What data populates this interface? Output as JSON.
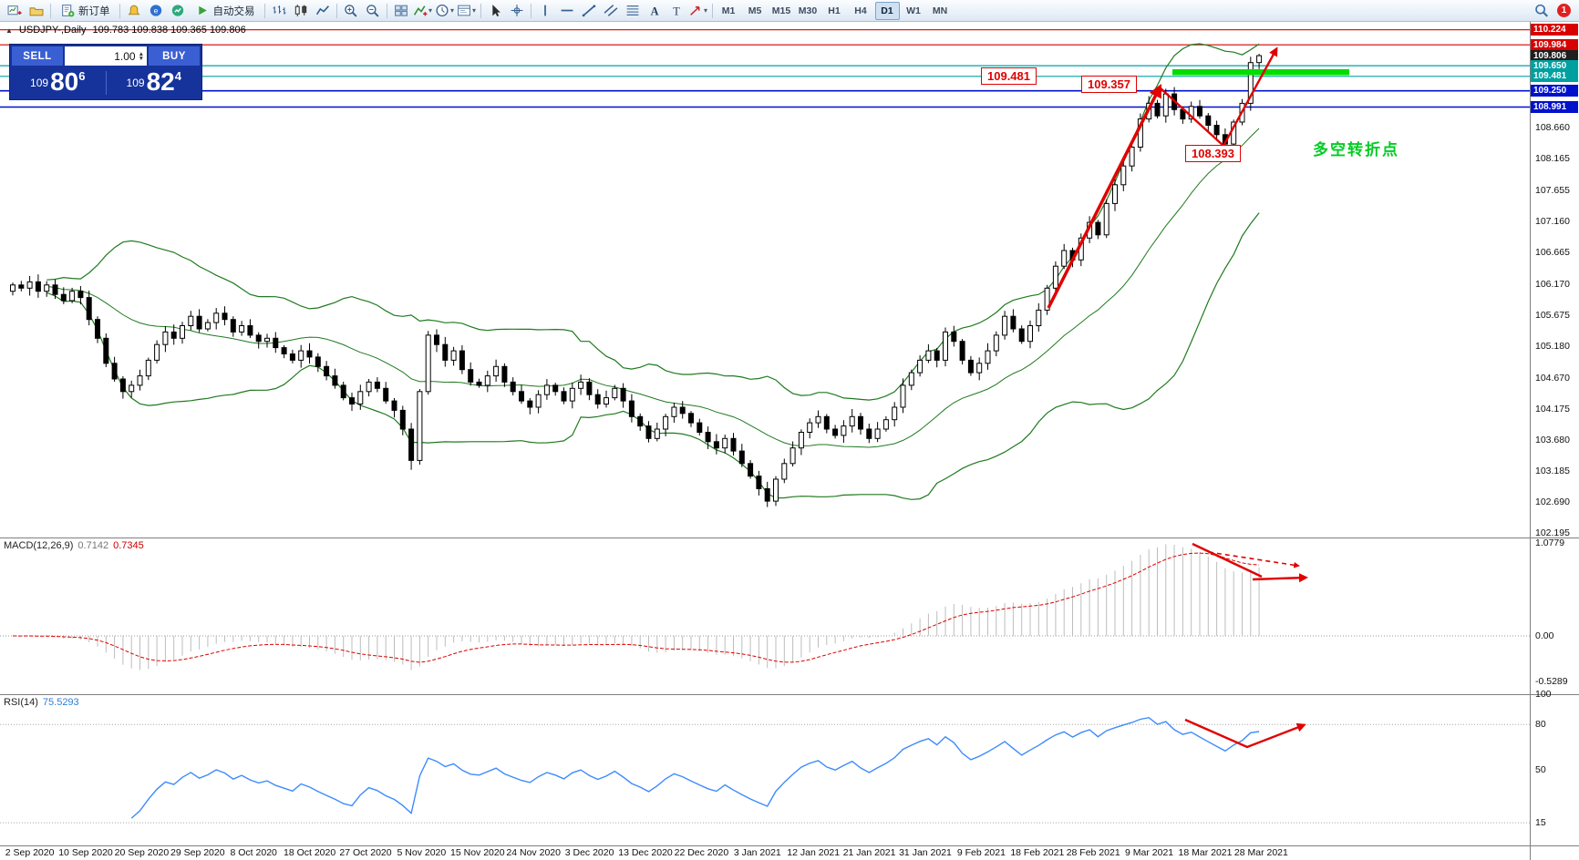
{
  "toolbar": {
    "timeframes": [
      "M1",
      "M5",
      "M15",
      "M30",
      "H1",
      "H4",
      "D1",
      "W1",
      "MN"
    ],
    "active_timeframe": "D1",
    "notification_count": "1",
    "items": [
      {
        "type": "icon",
        "name": "new-chart-icon"
      },
      {
        "type": "icon",
        "name": "profiles-icon"
      },
      {
        "type": "sep"
      },
      {
        "type": "labeled",
        "name": "new-order-button",
        "icon": "new-order-icon",
        "label": "新订单"
      },
      {
        "type": "sep"
      },
      {
        "type": "icon",
        "name": "alert-icon"
      },
      {
        "type": "icon",
        "name": "mql5-icon"
      },
      {
        "type": "icon",
        "name": "market-icon"
      },
      {
        "type": "labeled",
        "name": "autotrade-button",
        "icon": "autotrade-play-icon",
        "label": "自动交易"
      },
      {
        "type": "sep"
      },
      {
        "type": "icon",
        "name": "bars-icon"
      },
      {
        "type": "icon",
        "name": "candles-icon"
      },
      {
        "type": "icon",
        "name": "line-chart-icon"
      },
      {
        "type": "sep"
      },
      {
        "type": "icon",
        "name": "zoom-in-icon"
      },
      {
        "type": "icon",
        "name": "zoom-out-icon"
      },
      {
        "type": "sep"
      },
      {
        "type": "icon",
        "name": "tile-windows-icon"
      },
      {
        "type": "icon",
        "name": "indicators-icon",
        "caret": true
      },
      {
        "type": "icon",
        "name": "clock-icon",
        "caret": true
      },
      {
        "type": "icon",
        "name": "template-icon",
        "caret": true
      },
      {
        "type": "sep"
      },
      {
        "type": "icon",
        "name": "cursor-icon"
      },
      {
        "type": "icon",
        "name": "crosshair-icon"
      },
      {
        "type": "sep"
      },
      {
        "type": "icon",
        "name": "vline-icon"
      },
      {
        "type": "icon",
        "name": "hline-icon"
      },
      {
        "type": "icon",
        "name": "trendline-icon"
      },
      {
        "type": "icon",
        "name": "channel-icon"
      },
      {
        "type": "icon",
        "name": "fibonacci-icon"
      },
      {
        "type": "icon",
        "name": "text-icon"
      },
      {
        "type": "icon",
        "name": "label-icon"
      },
      {
        "type": "icon",
        "name": "shapes-icon",
        "caret": true
      },
      {
        "type": "sep"
      },
      {
        "type": "timeframes"
      },
      {
        "type": "spacer"
      },
      {
        "type": "icon",
        "name": "search-icon"
      },
      {
        "type": "badge"
      }
    ]
  },
  "symbol_header": {
    "toggle_icon": "▲",
    "symbol": "USDJPY-,Daily",
    "ohlc": "109.783 109.838 109.365 109.806"
  },
  "trade_panel": {
    "sell_label": "SELL",
    "buy_label": "BUY",
    "volume": "1.00",
    "price_prefix": "109",
    "sell_big": "80",
    "sell_sup": "6",
    "buy_big": "82",
    "buy_sup": "4"
  },
  "chart_data": {
    "type": "candlestick",
    "symbol": "USDJPY-",
    "timeframe": "Daily",
    "price_range": [
      102.12,
      110.35
    ],
    "first_open": 106.05,
    "closes": [
      106.15,
      106.1,
      106.2,
      106.05,
      106.15,
      106.0,
      105.9,
      106.05,
      105.95,
      105.6,
      105.3,
      104.9,
      104.65,
      104.45,
      104.55,
      104.7,
      104.95,
      105.2,
      105.4,
      105.3,
      105.5,
      105.65,
      105.45,
      105.55,
      105.7,
      105.6,
      105.4,
      105.5,
      105.35,
      105.25,
      105.3,
      105.15,
      105.05,
      104.95,
      105.1,
      105.0,
      104.85,
      104.7,
      104.55,
      104.35,
      104.25,
      104.45,
      104.6,
      104.5,
      104.3,
      104.15,
      103.85,
      103.35,
      104.45,
      105.35,
      105.2,
      104.95,
      105.1,
      104.8,
      104.6,
      104.55,
      104.7,
      104.85,
      104.6,
      104.45,
      104.3,
      104.2,
      104.4,
      104.55,
      104.45,
      104.3,
      104.5,
      104.6,
      104.4,
      104.25,
      104.35,
      104.5,
      104.3,
      104.05,
      103.9,
      103.7,
      103.85,
      104.05,
      104.2,
      104.1,
      103.95,
      103.8,
      103.65,
      103.55,
      103.7,
      103.5,
      103.3,
      103.1,
      102.9,
      102.7,
      103.05,
      103.3,
      103.55,
      103.8,
      103.95,
      104.05,
      103.85,
      103.75,
      103.9,
      104.05,
      103.85,
      103.7,
      103.85,
      104.0,
      104.2,
      104.55,
      104.75,
      104.95,
      105.1,
      104.95,
      105.4,
      105.25,
      104.95,
      104.75,
      104.9,
      105.1,
      105.35,
      105.65,
      105.45,
      105.25,
      105.5,
      105.75,
      106.1,
      106.45,
      106.7,
      106.55,
      106.9,
      107.15,
      106.95,
      107.45,
      107.75,
      108.05,
      108.35,
      108.8,
      109.05,
      108.85,
      109.2,
      108.95,
      108.8,
      109.0,
      108.85,
      108.7,
      108.55,
      108.4,
      108.75,
      109.05,
      109.7,
      109.81
    ],
    "candle_colors": {
      "up": "#ffffff",
      "down": "#000000",
      "outline": "#000000"
    },
    "price_axis": {
      "colors": {
        "red": "#d80000",
        "teal": "#00a0a0",
        "blue": "#0011cc",
        "current": "#1f1f1f"
      },
      "levels": [
        {
          "price": 110.224,
          "label": "110.224",
          "style": "red"
        },
        {
          "price": 109.984,
          "label": "109.984",
          "style": "red"
        },
        {
          "price": 109.806,
          "label": "109.806",
          "style": "current"
        },
        {
          "price": 109.65,
          "label": "109.650",
          "style": "teal"
        },
        {
          "price": 109.481,
          "label": "109.481",
          "style": "teal"
        },
        {
          "price": 109.25,
          "label": "109.250",
          "style": "blue"
        },
        {
          "price": 108.991,
          "label": "108.991",
          "style": "blue"
        }
      ],
      "scale_labels": [
        "108.660",
        "108.165",
        "107.655",
        "107.160",
        "106.665",
        "106.170",
        "105.675",
        "105.180",
        "104.670",
        "104.175",
        "103.680",
        "103.185",
        "102.690",
        "102.195"
      ]
    },
    "date_labels": [
      "2 Sep 2020",
      "10 Sep 2020",
      "20 Sep 2020",
      "29 Sep 2020",
      "8 Oct 2020",
      "18 Oct 2020",
      "27 Oct 2020",
      "5 Nov 2020",
      "15 Nov 2020",
      "24 Nov 2020",
      "3 Dec 2020",
      "13 Dec 2020",
      "22 Dec 2020",
      "3 Jan 2021",
      "12 Jan 2021",
      "21 Jan 2021",
      "31 Jan 2021",
      "9 Feb 2021",
      "18 Feb 2021",
      "28 Feb 2021",
      "9 Mar 2021",
      "18 Mar 2021",
      "28 Mar 2021"
    ],
    "indicators": {
      "bollinger": {
        "period": 20,
        "deviation": 2,
        "color": "#1f7a1f"
      },
      "macd": {
        "label": "MACD(12,26,9)",
        "value_main": "0.7142",
        "value_signal": "0.7345",
        "axis_labels": [
          "1.0779",
          "0.00",
          "-0.5289"
        ],
        "histogram_color": "#bdbdbd",
        "signal_color": "#dd0000"
      },
      "rsi": {
        "label": "RSI(14)",
        "value": "75.5293",
        "axis_labels": [
          "100",
          "80",
          "50",
          "15"
        ],
        "color": "#3d8bfd"
      }
    }
  },
  "annotations": {
    "price_box_resistance": "109.481",
    "price_box_peak": "109.357",
    "price_box_dip": "108.393",
    "turning_point_text": "多空转折点",
    "turning_point_color": "#00cc22",
    "arrow_color": "#e00000",
    "zone_color": "#00dd00"
  }
}
